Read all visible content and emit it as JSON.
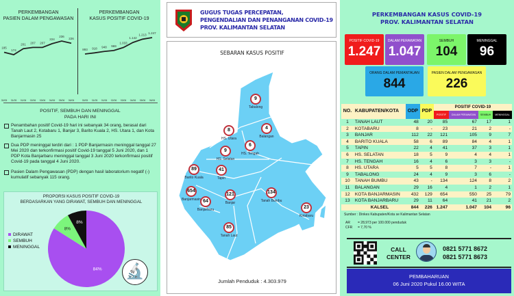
{
  "left": {
    "chart1_title": [
      "PERKEMBANGAN",
      "PASIEN DALAM PENGAWASAN"
    ],
    "chart2_title": [
      "PERKEMBANGAN",
      "KASUS POSITIF COVID-19"
    ],
    "section_title": [
      "POSITIF, SEMBUH DAN MENINGGAL",
      "PADA HARI INI"
    ],
    "bullets": [
      "Penambahan positif Covid-19 hari ini sebanyak 34 orang, berasal dari Tanah Laut 2, Kotabaru 1, Banjar 3, Barito Kuala 2, HS. Utara 1, dan Kota Banjarmasin 25",
      "Dua PDP meninggal terdiri dari  : 1 PDP Banjarmasin meninggal tanggal 27 Mei 2020 dan terkonfirmasi positif Covid-19 tanggal 5 Juni 2020, dan 1 PDP Kota Banjarbaru meninggal tanggal 3 Juni 2020 terkonfirmasi positif Covid-19 pada tanggal 4 Juni 2020.",
      "Pasien Dalam Pengawasan (PDP) dengan hasil laboratorium negatif (-) kumulatif sebanyak 115 orang."
    ],
    "pie_title": [
      "PROPORSI KASUS POSITIF COVID-19",
      "BERDASARKAN YANG DIRAWAT, SEMBUH DAN MENINGGAL"
    ],
    "microscope_icon": "microscope-icon"
  },
  "chart_data": [
    {
      "type": "line",
      "title": "PERKEMBANGAN PASIEN DALAM PENGAWASAN",
      "categories": [
        "30/05",
        "31/05",
        "01/06",
        "02/06",
        "03/06",
        "04/06",
        "05/06",
        "06/06"
      ],
      "values": [
        185,
        174,
        201,
        207,
        207,
        224,
        236,
        226
      ],
      "color": "#222222"
    },
    {
      "type": "line",
      "title": "PERKEMBANGAN KASUS POSITIF COVID-19",
      "categories": [
        "30/05",
        "31/05",
        "01/06",
        "02/06",
        "03/06",
        "04/06",
        "05/06",
        "06/06"
      ],
      "values": [
        893,
        918,
        948,
        969,
        1033,
        1142,
        1213,
        1247
      ],
      "labels": [
        "893",
        "918",
        "948",
        "969",
        "1.033",
        "1.142",
        "1.213",
        "1.247"
      ],
      "color": "#222222"
    },
    {
      "type": "pie",
      "title": "PROPORSI KASUS POSITIF COVID-19 BERDASARKAN YANG DIRAWAT, SEMBUH DAN MENINGGAL",
      "legend": "left",
      "slices": [
        {
          "name": "DIRAWAT",
          "value": 84,
          "label": "84%",
          "color": "#a84ff0"
        },
        {
          "name": "SEMBUH",
          "value": 8,
          "label": "8%",
          "color": "#7cf57c"
        },
        {
          "name": "MENINGGAL",
          "value": 8,
          "label": "8%",
          "color": "#111111"
        }
      ]
    }
  ],
  "middle": {
    "header": [
      "GUGUS TUGAS PERCEPATAN,",
      "PENGENDALIAN DAN PENANGANAN COVID-19",
      "PROV. KALIMANTAN SELATAN"
    ],
    "map_title": "SEBARAN KASUS POSITIF",
    "population": "Jumlah Penduduk : 4.303.979",
    "map_color": "#6cd0f5",
    "pins": [
      {
        "name": "Tabalong",
        "value": "9"
      },
      {
        "name": "Balangan",
        "value": "4"
      },
      {
        "name": "HS. Utara",
        "value": "8"
      },
      {
        "name": "HS. Tengah",
        "value": "6"
      },
      {
        "name": "HS. Selatan",
        "value": "9"
      },
      {
        "name": "Barito Kuala",
        "value": "89"
      },
      {
        "name": "Tapin",
        "value": "41"
      },
      {
        "name": "Banjarmasin",
        "value": "654"
      },
      {
        "name": "Banjarbaru",
        "value": "64"
      },
      {
        "name": "Banjar",
        "value": "121"
      },
      {
        "name": "Tanah Bumbu",
        "value": "134"
      },
      {
        "name": "Kotabaru",
        "value": "23"
      },
      {
        "name": "Tanah Laut",
        "value": "85"
      }
    ]
  },
  "right": {
    "title": [
      "PERKEMBANGAN KASUS COVID-19",
      "PROV. KALIMANTAN SELATAN"
    ],
    "cards": [
      {
        "label": "POSITIF COVID-19",
        "value": "1.247",
        "color": "#f01c1c"
      },
      {
        "label": "DALAM PERAWATAN",
        "value": "1.047",
        "color": "#9150cc"
      },
      {
        "label": "SEMBUH",
        "value": "104",
        "color": "#7cf56a"
      },
      {
        "label": "MENINGGAL",
        "value": "96",
        "color": "#000000"
      },
      {
        "label": "ORANG DALAM PEMANTAUAN",
        "value": "844",
        "color": "#2aa8e6"
      },
      {
        "label": "PASIEN DALAM PENGAWASAN",
        "value": "226",
        "color": "#fafa5a"
      }
    ],
    "table": {
      "headers": {
        "no": "NO.",
        "kab": "KABUPATEN/KOTA",
        "odp": "ODP",
        "pdp": "PDP",
        "group": "POSITIF COVID-19",
        "positif": "POSITIF",
        "perawatan": "DALAM PERAWATAN",
        "sembuh": "SEMBUH",
        "meninggal": "MENINGGAL"
      },
      "rows": [
        [
          "1",
          "TANAH LAUT",
          "48",
          "20",
          "85",
          "67",
          "17",
          "1"
        ],
        [
          "2",
          "KOTABARU",
          "8",
          "-",
          "23",
          "21",
          "2",
          "-"
        ],
        [
          "3",
          "BANJAR",
          "112",
          "22",
          "121",
          "105",
          "9",
          "7"
        ],
        [
          "4",
          "BARITO KUALA",
          "58",
          "6",
          "89",
          "84",
          "4",
          "1"
        ],
        [
          "5",
          "TAPIN",
          "22",
          "4",
          "41",
          "37",
          "3",
          "1"
        ],
        [
          "6",
          "HS. SELATAN",
          "18",
          "5",
          "9",
          "4",
          "4",
          "1"
        ],
        [
          "7",
          "HS. TENGAH",
          "16",
          "4",
          "6",
          "3",
          "3",
          "-"
        ],
        [
          "8",
          "HS. UTARA",
          "5",
          "5",
          "8",
          "7",
          "-",
          "1"
        ],
        [
          "9",
          "TABALONG",
          "24",
          "4",
          "9",
          "3",
          "6",
          "-"
        ],
        [
          "10",
          "TANAH BUMBU",
          "43",
          "-",
          "134",
          "124",
          "8",
          "2"
        ],
        [
          "11",
          "BALANGAN",
          "29",
          "16",
          "4",
          "1",
          "2",
          "1"
        ],
        [
          "12",
          "KOTA BANJARMASIN",
          "432",
          "129",
          "654",
          "550",
          "25",
          "79"
        ],
        [
          "13",
          "KOTA BANJARBARU",
          "29",
          "11",
          "64",
          "41",
          "21",
          "2"
        ]
      ],
      "total": [
        "KALSEL",
        "844",
        "226",
        "1.247",
        "1.047",
        "104",
        "96"
      ]
    },
    "source": "Sumber :  Dinkes Kabupaten/Kota  se Kalimantan Selatan",
    "ar_label": "AR",
    "ar_value": "= 28,973 per 100.000 penduduk",
    "cfr_label": "CFR",
    "cfr_value": "= 7,70 %",
    "call_center": [
      "CALL",
      "CENTER"
    ],
    "phones": [
      "0821 5771 8672",
      "0821 5771 8673"
    ],
    "update_title": "PEMBAHARUAN",
    "update_date": "06 Juni 2020 Pukul 16.00 WITA"
  }
}
